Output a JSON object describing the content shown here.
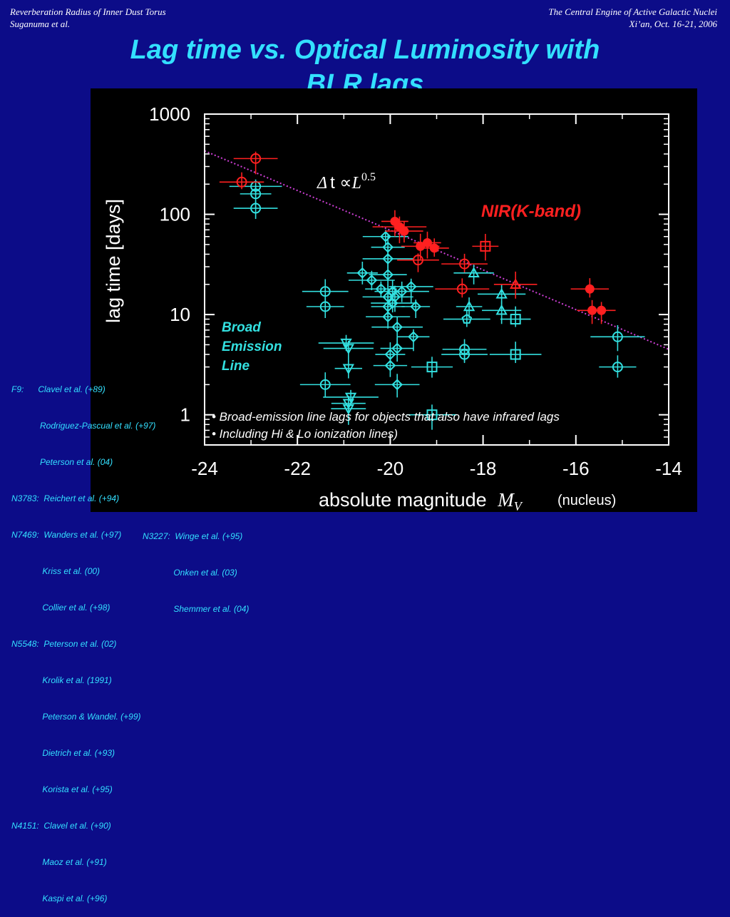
{
  "header": {
    "left_line1": "Reverberation Radius of Inner Dust Torus",
    "left_line2": "Suganuma et al.",
    "right_line1": "The Central Engine of Active Galactic Nuclei",
    "right_line2": "Xi’an, Oct. 16-21, 2006"
  },
  "slide_title": {
    "line1": "Lag time vs. Optical Luminosity with",
    "line2": "BLR lags"
  },
  "colors": {
    "background": "#0c0c88",
    "title": "#33e0ff",
    "blr": "#33e0e0",
    "nir": "#ff2020",
    "fit": "#d040d8"
  },
  "chart_data": {
    "type": "scatter",
    "xlabel": "absolute magnitude",
    "xlabel_symbol": "M",
    "xlabel_sub": "V",
    "xlabel_note": "(nucleus)",
    "ylabel": "lag time [days]",
    "xlim": [
      -24,
      -14
    ],
    "ylim": [
      0.5,
      1000
    ],
    "y_scale": "log",
    "x_ticks": [
      "-24",
      "-22",
      "-20",
      "-18",
      "-16",
      "-14"
    ],
    "y_ticks": [
      "1000",
      "100",
      "10",
      "1"
    ],
    "fit_line": {
      "label_delta": "Δ",
      "label_t": "t ∝",
      "label_L": "L",
      "label_exp": "0.5",
      "x": [
        -24,
        -14
      ],
      "y": [
        430,
        4.5
      ]
    },
    "labels": {
      "nir": "NIR(K-band)",
      "blr_line1": "Broad",
      "blr_line2": "Emission",
      "blr_line3": "Line"
    },
    "notes": [
      "• Broad-emission line lags for objects that also have infrared lags",
      "• Including Hi & Lo ionization lines)"
    ],
    "series": [
      {
        "name": "NIR(K-band)",
        "points": [
          {
            "x": -22.9,
            "y": 360,
            "m": "circle"
          },
          {
            "x": -23.2,
            "y": 210,
            "m": "circle"
          },
          {
            "x": -19.9,
            "y": 85,
            "m": "dot"
          },
          {
            "x": -19.8,
            "y": 75,
            "m": "dot"
          },
          {
            "x": -19.7,
            "y": 68,
            "m": "dot"
          },
          {
            "x": -19.35,
            "y": 48,
            "m": "dot"
          },
          {
            "x": -19.2,
            "y": 52,
            "m": "dot"
          },
          {
            "x": -19.05,
            "y": 46,
            "m": "dot"
          },
          {
            "x": -19.4,
            "y": 35,
            "m": "circle"
          },
          {
            "x": -18.4,
            "y": 32,
            "m": "circle"
          },
          {
            "x": -17.95,
            "y": 48,
            "m": "square"
          },
          {
            "x": -18.45,
            "y": 18,
            "m": "circle"
          },
          {
            "x": -17.3,
            "y": 20,
            "m": "triangle"
          },
          {
            "x": -15.7,
            "y": 18,
            "m": "dot"
          },
          {
            "x": -15.65,
            "y": 11,
            "m": "dot"
          },
          {
            "x": -15.45,
            "y": 11,
            "m": "dot"
          }
        ]
      },
      {
        "name": "Broad Emission Line",
        "points": [
          {
            "x": -22.9,
            "y": 190,
            "m": "circle"
          },
          {
            "x": -22.9,
            "y": 160,
            "m": "circle"
          },
          {
            "x": -22.9,
            "y": 115,
            "m": "circle"
          },
          {
            "x": -21.4,
            "y": 17,
            "m": "circle"
          },
          {
            "x": -21.4,
            "y": 12,
            "m": "circle"
          },
          {
            "x": -21.4,
            "y": 2,
            "m": "circle"
          },
          {
            "x": -20.95,
            "y": 5.2,
            "m": "tri-down"
          },
          {
            "x": -20.9,
            "y": 4.6,
            "m": "tri-down"
          },
          {
            "x": -20.9,
            "y": 2.9,
            "m": "tri-down"
          },
          {
            "x": -20.85,
            "y": 1.5,
            "m": "tri-down"
          },
          {
            "x": -20.9,
            "y": 1.3,
            "m": "tri-down"
          },
          {
            "x": -20.9,
            "y": 1.15,
            "m": "tri-down"
          },
          {
            "x": -20.6,
            "y": 26,
            "m": "diamond"
          },
          {
            "x": -20.4,
            "y": 22,
            "m": "diamond"
          },
          {
            "x": -20.2,
            "y": 18,
            "m": "diamond"
          },
          {
            "x": -20.1,
            "y": 60,
            "m": "diamond"
          },
          {
            "x": -20.05,
            "y": 47,
            "m": "diamond"
          },
          {
            "x": -20.05,
            "y": 36,
            "m": "diamond"
          },
          {
            "x": -20.05,
            "y": 25,
            "m": "diamond"
          },
          {
            "x": -20.05,
            "y": 15,
            "m": "diamond"
          },
          {
            "x": -20.05,
            "y": 12,
            "m": "diamond"
          },
          {
            "x": -20.05,
            "y": 9.5,
            "m": "diamond"
          },
          {
            "x": -20.0,
            "y": 4.0,
            "m": "diamond"
          },
          {
            "x": -20.0,
            "y": 3.1,
            "m": "diamond"
          },
          {
            "x": -19.95,
            "y": 17,
            "m": "diamond"
          },
          {
            "x": -19.95,
            "y": 13,
            "m": "diamond"
          },
          {
            "x": -19.9,
            "y": 15,
            "m": "diamond"
          },
          {
            "x": -19.85,
            "y": 7.5,
            "m": "diamond"
          },
          {
            "x": -19.85,
            "y": 4.6,
            "m": "diamond"
          },
          {
            "x": -19.85,
            "y": 2.0,
            "m": "diamond"
          },
          {
            "x": -19.75,
            "y": 17,
            "m": "diamond"
          },
          {
            "x": -19.55,
            "y": 19,
            "m": "diamond"
          },
          {
            "x": -19.45,
            "y": 12,
            "m": "diamond"
          },
          {
            "x": -19.5,
            "y": 6.0,
            "m": "diamond"
          },
          {
            "x": -19.1,
            "y": 3.0,
            "m": "square"
          },
          {
            "x": -19.1,
            "y": 1.0,
            "m": "square"
          },
          {
            "x": -18.35,
            "y": 9.0,
            "m": "pentagon"
          },
          {
            "x": -18.4,
            "y": 4.5,
            "m": "circle"
          },
          {
            "x": -18.4,
            "y": 4.0,
            "m": "circle"
          },
          {
            "x": -18.2,
            "y": 26,
            "m": "triangle"
          },
          {
            "x": -18.3,
            "y": 12,
            "m": "triangle"
          },
          {
            "x": -17.6,
            "y": 16,
            "m": "triangle"
          },
          {
            "x": -17.6,
            "y": 11,
            "m": "triangle"
          },
          {
            "x": -17.3,
            "y": 9.0,
            "m": "square"
          },
          {
            "x": -17.3,
            "y": 4.0,
            "m": "square"
          },
          {
            "x": -15.1,
            "y": 6.0,
            "m": "circle"
          },
          {
            "x": -15.1,
            "y": 3.0,
            "m": "circle"
          }
        ]
      }
    ]
  },
  "references_left": [
    "F9:      Clavel et al. (+89)",
    "            Rodriguez-Pascual et al. (+97)",
    "            Peterson et al. (04)",
    "N3783:  Reichert et al. (+94)",
    "N7469:  Wanders et al. (+97)",
    "             Kriss et al. (00)",
    "             Collier et al. (+98)",
    "N5548:  Peterson et al. (02)",
    "             Krolik et al. (1991)",
    "             Peterson & Wandel. (+99)",
    "             Dietrich et al. (+93)",
    "             Korista et al. (+95)",
    "N4151:  Clavel et al. (+90)",
    "             Maoz et al. (+91)",
    "             Kaspi et al. (+96)"
  ],
  "references_right": [
    "N3227:  Winge et al. (+95)",
    "             Onken et al. (03)",
    "             Shemmer et al. (04)"
  ]
}
